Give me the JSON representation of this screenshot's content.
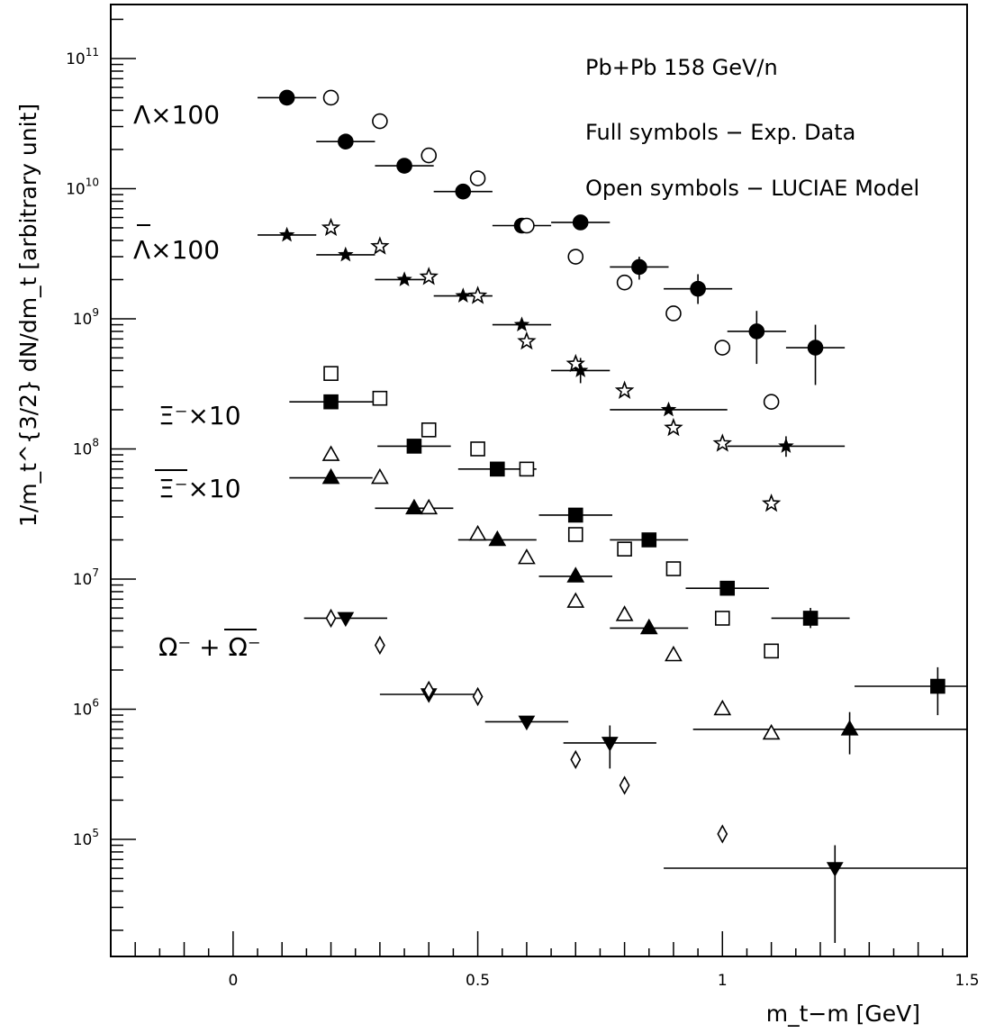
{
  "chart_data": {
    "type": "scatter",
    "title": "",
    "xlabel": "m_t−m [GeV]",
    "ylabel": "1/m_t^{3/2} dN/dm_t [arbitrary unit]",
    "xlim": [
      -0.25,
      1.5
    ],
    "ylim": [
      12589,
      260000000000.0
    ],
    "yscale": "log",
    "x_ticks": [
      "0",
      "0.5",
      "1",
      "1.5"
    ],
    "y_ticks": [
      {
        "value": 100000.0,
        "mantissa": "10",
        "exp": "5"
      },
      {
        "value": 1000000.0,
        "mantissa": "10",
        "exp": "6"
      },
      {
        "value": 10000000.0,
        "mantissa": "10",
        "exp": "7"
      },
      {
        "value": 100000000.0,
        "mantissa": "10",
        "exp": "8"
      },
      {
        "value": 1000000000.0,
        "mantissa": "10",
        "exp": "9"
      },
      {
        "value": 10000000000.0,
        "mantissa": "10",
        "exp": "10"
      },
      {
        "value": 100000000000.0,
        "mantissa": "10",
        "exp": "11"
      }
    ],
    "annotations": [
      "Pb+Pb 158 GeV/n",
      "Full symbols − Exp. Data",
      "Open symbols − LUCIAE Model"
    ],
    "series_labels": [
      {
        "series": "lambda",
        "text": "Λ×100"
      },
      {
        "series": "antilambda",
        "text": "Λ×100"
      },
      {
        "series": "xi",
        "text": "Ξ⁻×10"
      },
      {
        "series": "antixi",
        "text": "Ξ⁻×10"
      },
      {
        "series": "omega",
        "text": "Ω⁻ + Ω⁻"
      }
    ],
    "series": [
      {
        "id": "lambda",
        "kind": "data",
        "marker": "filled-circle",
        "x": [
          0.11,
          0.23,
          0.35,
          0.47,
          0.59,
          0.71,
          0.83,
          0.95,
          1.07,
          1.19
        ],
        "y": [
          50000000000.0,
          23000000000.0,
          15000000000.0,
          9500000000.0,
          5200000000.0,
          5500000000.0,
          2500000000.0,
          1700000000.0,
          800000000.0,
          600000000.0
        ],
        "xerr": [
          0.06,
          0.06,
          0.06,
          0.06,
          0.06,
          0.06,
          0.06,
          0.07,
          0.06,
          0.06
        ],
        "yerr_lo": [
          null,
          null,
          null,
          null,
          null,
          null,
          2000000000.0,
          1300000000.0,
          450000000.0,
          310000000.0
        ],
        "yerr_hi": [
          null,
          null,
          null,
          null,
          null,
          null,
          3000000000.0,
          2200000000.0,
          1150000000.0,
          900000000.0
        ]
      },
      {
        "id": "lambda-model",
        "kind": "model",
        "marker": "open-circle",
        "x": [
          0.2,
          0.3,
          0.4,
          0.5,
          0.6,
          0.7,
          0.8,
          0.9,
          1.0,
          1.1
        ],
        "y": [
          50000000000.0,
          33000000000.0,
          18000000000.0,
          12000000000.0,
          5200000000.0,
          3000000000.0,
          1900000000.0,
          1100000000.0,
          600000000.0,
          230000000.0
        ]
      },
      {
        "id": "antilambda",
        "kind": "data",
        "marker": "filled-star",
        "x": [
          0.11,
          0.23,
          0.35,
          0.47,
          0.59,
          0.71,
          0.89,
          1.13
        ],
        "y": [
          4400000000.0,
          3100000000.0,
          2000000000.0,
          1500000000.0,
          900000000.0,
          400000000.0,
          200000000.0,
          105000000.0
        ],
        "xerr": [
          0.06,
          0.06,
          0.06,
          0.06,
          0.06,
          0.06,
          0.12,
          0.12
        ],
        "yerr_lo": [
          null,
          null,
          null,
          null,
          null,
          320000000.0,
          null,
          87000000.0
        ],
        "yerr_hi": [
          null,
          null,
          null,
          null,
          null,
          500000000.0,
          null,
          125000000.0
        ]
      },
      {
        "id": "antilambda-model",
        "kind": "model",
        "marker": "open-star",
        "x": [
          0.2,
          0.3,
          0.4,
          0.5,
          0.6,
          0.7,
          0.8,
          0.9,
          1.0,
          1.1
        ],
        "y": [
          5000000000.0,
          3600000000.0,
          2100000000.0,
          1500000000.0,
          670000000.0,
          450000000.0,
          280000000.0,
          145000000.0,
          110000000.0,
          38000000.0
        ]
      },
      {
        "id": "xi",
        "kind": "data",
        "marker": "filled-square",
        "x": [
          0.2,
          0.37,
          0.54,
          0.7,
          0.85,
          1.01,
          1.18,
          1.44
        ],
        "y": [
          230000000.0,
          105000000.0,
          70000000.0,
          31000000.0,
          20000000.0,
          8500000.0,
          5000000.0,
          1500000.0
        ],
        "xerr": [
          0.085,
          0.075,
          0.08,
          0.075,
          0.08,
          0.085,
          0.08,
          0.17
        ],
        "yerr_lo": [
          null,
          null,
          null,
          null,
          null,
          null,
          4200000.0,
          900000.0
        ],
        "yerr_hi": [
          null,
          null,
          null,
          null,
          null,
          null,
          6000000.0,
          2100000.0
        ]
      },
      {
        "id": "xi-model",
        "kind": "model",
        "marker": "open-square",
        "x": [
          0.2,
          0.3,
          0.4,
          0.5,
          0.6,
          0.7,
          0.8,
          0.9,
          1.0,
          1.1
        ],
        "y": [
          380000000.0,
          245000000.0,
          140000000.0,
          100000000.0,
          70000000.0,
          22000000.0,
          17000000.0,
          12000000.0,
          5000000.0,
          2800000.0
        ]
      },
      {
        "id": "antixi",
        "kind": "data",
        "marker": "filled-triangle",
        "x": [
          0.2,
          0.37,
          0.54,
          0.7,
          0.85,
          1.26
        ],
        "y": [
          60000000.0,
          35000000.0,
          20000000.0,
          10500000.0,
          4200000.0,
          700000.0
        ],
        "xerr": [
          0.085,
          0.08,
          0.08,
          0.075,
          0.08,
          0.32
        ],
        "yerr_lo": [
          null,
          null,
          null,
          null,
          null,
          450000.0
        ],
        "yerr_hi": [
          null,
          null,
          null,
          null,
          null,
          950000.0
        ]
      },
      {
        "id": "antixi-model",
        "kind": "model",
        "marker": "open-triangle",
        "x": [
          0.2,
          0.3,
          0.4,
          0.5,
          0.6,
          0.7,
          0.8,
          0.9,
          1.0,
          1.1
        ],
        "y": [
          90000000.0,
          60000000.0,
          35000000.0,
          22000000.0,
          14500000.0,
          6700000.0,
          5300000.0,
          2600000.0,
          1000000.0,
          650000.0
        ]
      },
      {
        "id": "omega",
        "kind": "data",
        "marker": "filled-triangle-down",
        "x": [
          0.23,
          0.4,
          0.6,
          0.77,
          1.23
        ],
        "y": [
          5000000.0,
          1300000.0,
          800000.0,
          550000.0,
          60000.0
        ],
        "xerr": [
          0.085,
          0.1,
          0.085,
          0.095,
          0.35
        ],
        "yerr_lo": [
          null,
          null,
          null,
          350000.0,
          16000.0
        ],
        "yerr_hi": [
          null,
          null,
          null,
          750000.0,
          90000.0
        ]
      },
      {
        "id": "omega-model",
        "kind": "model",
        "marker": "open-diamond",
        "x": [
          0.2,
          0.3,
          0.4,
          0.5,
          0.7,
          0.8,
          1.0
        ],
        "y": [
          5000000.0,
          3100000.0,
          1400000.0,
          1250000.0,
          410000.0,
          260000.0,
          110000.0
        ]
      }
    ]
  }
}
